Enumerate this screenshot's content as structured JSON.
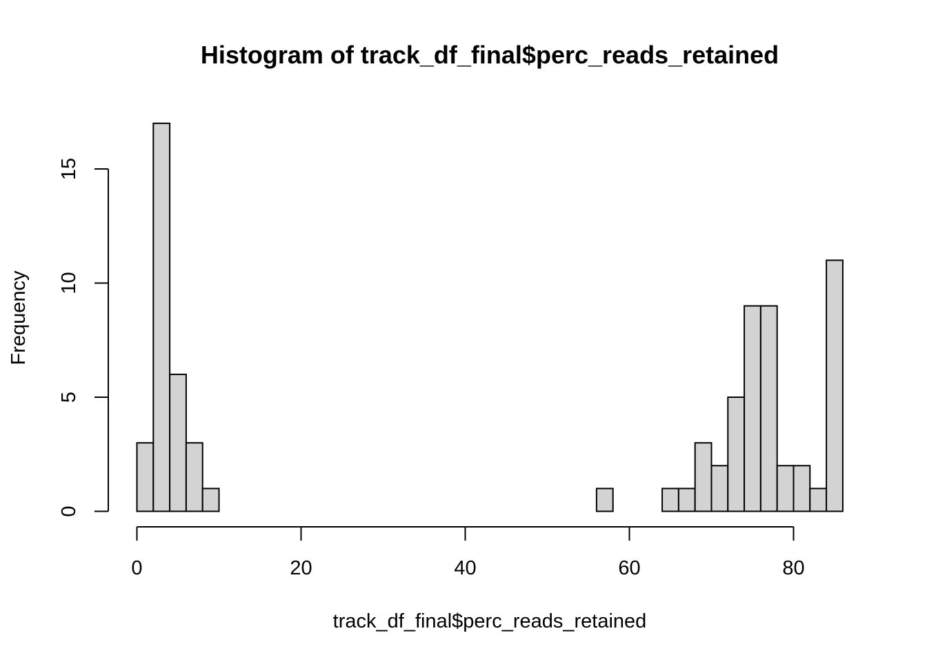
{
  "chart_data": {
    "type": "bar",
    "title": "Histogram of track_df_final$perc_reads_retained",
    "xlabel": "track_df_final$perc_reads_retained",
    "ylabel": "Frequency",
    "bin_width": 2,
    "bin_start": 0,
    "values": [
      3,
      17,
      6,
      3,
      1,
      0,
      0,
      0,
      0,
      0,
      0,
      0,
      0,
      0,
      0,
      0,
      0,
      0,
      0,
      0,
      0,
      0,
      0,
      0,
      0,
      0,
      0,
      0,
      1,
      0,
      0,
      0,
      1,
      1,
      3,
      2,
      5,
      9,
      9,
      2,
      2,
      1,
      11
    ],
    "xlim": [
      0,
      86
    ],
    "ylim": [
      0,
      17
    ],
    "x_ticks": [
      0,
      20,
      40,
      60,
      80
    ],
    "y_ticks": [
      0,
      5,
      10,
      15
    ],
    "bar_fill": "#d3d3d3",
    "bar_stroke": "#000000",
    "grid": false,
    "legend": "none"
  }
}
